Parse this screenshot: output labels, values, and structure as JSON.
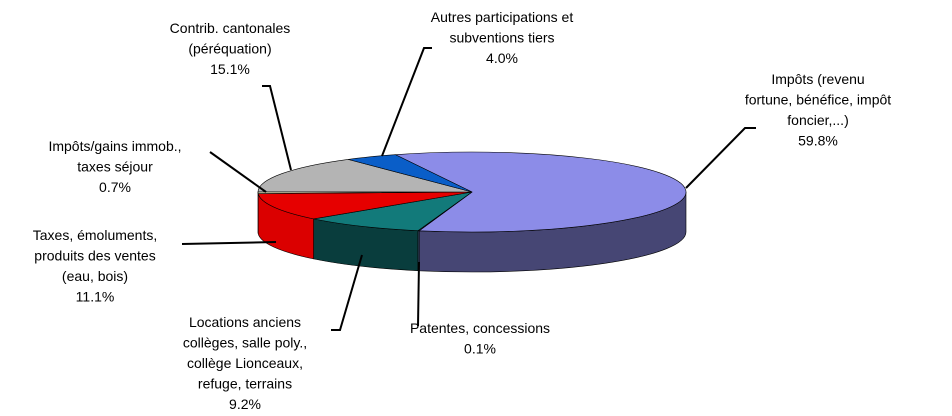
{
  "chart_data": {
    "type": "pie",
    "categories": [
      [
        "Impôts (revenu",
        "fortune, bénéfice, impôt",
        "foncier,...)"
      ],
      [
        "Patentes, concessions"
      ],
      [
        "Locations anciens",
        "collèges, salle poly.,",
        "collège Lionceaux,",
        "refuge, terrains"
      ],
      [
        "Taxes, émoluments,",
        "produits des ventes",
        "(eau, bois)"
      ],
      [
        "Impôts/gains immob.,",
        "taxes séjour"
      ],
      [
        "Contrib. cantonales",
        "(péréquation)"
      ],
      [
        "Autres participations et",
        "subventions tiers"
      ]
    ],
    "values": [
      59.8,
      0.1,
      9.2,
      11.1,
      0.7,
      15.1,
      4.0
    ],
    "value_labels": [
      "59.8%",
      "0.1%",
      "9.2%",
      "11.1%",
      "0.7%",
      "15.1%",
      "4.0%"
    ],
    "colors": [
      "#8c8ce8",
      "#6a9fd8",
      "#127a7a",
      "#e60000",
      "#f0f0c8",
      "#b4b4b4",
      "#0a5ec8"
    ]
  }
}
